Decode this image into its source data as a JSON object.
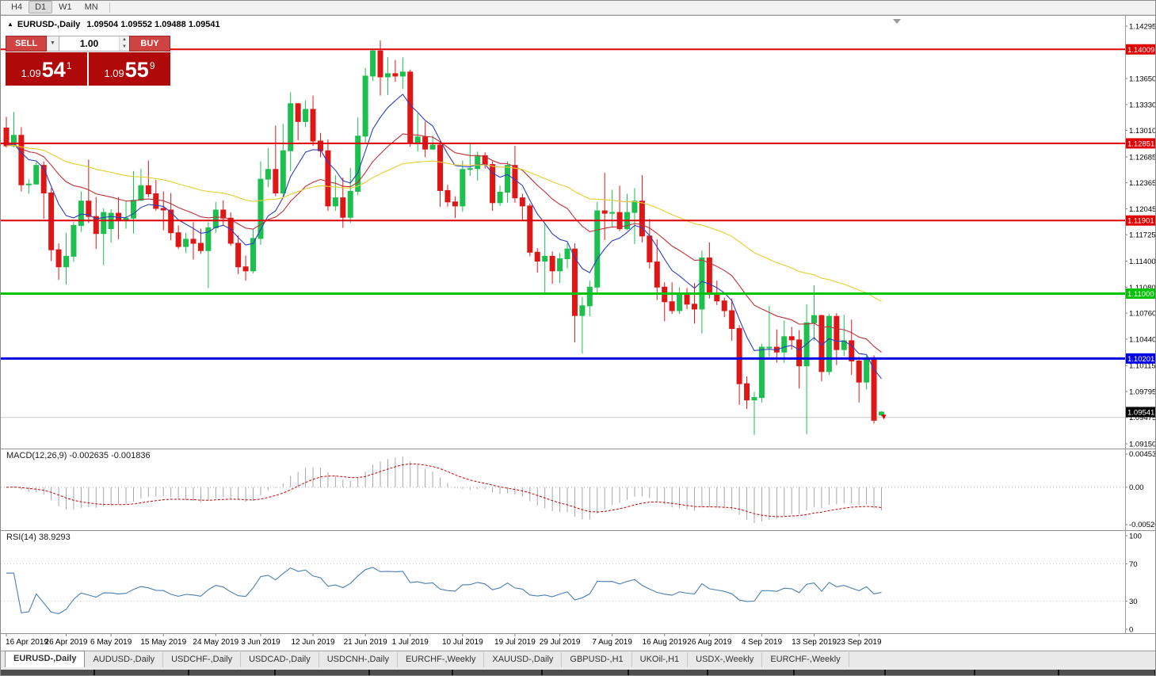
{
  "window": {
    "timeframe_buttons": [
      "H4",
      "D1",
      "W1",
      "MN"
    ],
    "active_timeframe": "D1"
  },
  "chart_header": {
    "collapse_icon": "▲",
    "symbol_period": "EURUSD-,Daily",
    "ohlc_text": "1.09504 1.09552 1.09488 1.09541"
  },
  "one_click": {
    "sell_label": "SELL",
    "buy_label": "BUY",
    "volume": "1.00",
    "sell_price": {
      "prefix": "1.09",
      "big": "54",
      "sup": "1"
    },
    "buy_price": {
      "prefix": "1.09",
      "big": "55",
      "sup": "9"
    }
  },
  "indicators": {
    "macd_label": "MACD(12,26,9) -0.002635 -0.001836",
    "rsi_label": "RSI(14) 38.9293"
  },
  "tabs": [
    {
      "label": "EURUSD-,Daily",
      "active": true
    },
    {
      "label": "AUDUSD-,Daily",
      "active": false
    },
    {
      "label": "USDCHF-,Daily",
      "active": false
    },
    {
      "label": "USDCAD-,Daily",
      "active": false
    },
    {
      "label": "USDCNH-,Daily",
      "active": false
    },
    {
      "label": "EURCHF-,Weekly",
      "active": false
    },
    {
      "label": "XAUUSD-,Daily",
      "active": false
    },
    {
      "label": "GBPUSD-,H1",
      "active": false
    },
    {
      "label": "UKOil-,H1",
      "active": false
    },
    {
      "label": "USDX-,Weekly",
      "active": false
    },
    {
      "label": "EURCHF-,Weekly",
      "active": false
    }
  ],
  "chart_data": {
    "type": "candlestick",
    "symbol": "EURUSD-",
    "period": "Daily",
    "title": "EURUSD-,Daily",
    "current": {
      "open": 1.09504,
      "high": 1.09552,
      "low": 1.09488,
      "close": 1.09541,
      "bid": "1.09541",
      "ask": "1.09559"
    },
    "up_color": "#1dbf4f",
    "down_color": "#df1616",
    "price_axis_ticks": [
      "1.14295",
      "1.13650",
      "1.13330",
      "1.13010",
      "1.12685",
      "1.12365",
      "1.12045",
      "1.11725",
      "1.11400",
      "1.11080",
      "1.10760",
      "1.10440",
      "1.10115",
      "1.09795",
      "1.09475",
      "1.09150"
    ],
    "levels": [
      {
        "price": 1.14009,
        "color": "#e00000",
        "width": 2,
        "badge": true
      },
      {
        "price": 1.12851,
        "color": "#e00000",
        "width": 2,
        "badge": true
      },
      {
        "price": 1.11901,
        "color": "#e00000",
        "width": 2,
        "badge": true
      },
      {
        "price": 1.11,
        "color": "#00c400",
        "width": 3,
        "badge": true
      },
      {
        "price": 1.10201,
        "color": "#0000e8",
        "width": 3,
        "badge": true
      },
      {
        "price": 1.09475,
        "color": "#c9c9c9",
        "width": 1,
        "badge": false
      }
    ],
    "current_price_badge": {
      "price": 1.09541,
      "color": "#000000"
    },
    "last_price_marker": {
      "price": 1.0948,
      "color": "#dd0000"
    },
    "moving_averages": [
      {
        "period": 8,
        "color": "#2c3ec0"
      },
      {
        "period": 21,
        "color": "#c03038"
      },
      {
        "period": 55,
        "color": "#e6cf30"
      }
    ],
    "macd": {
      "params": "12,26,9",
      "value_main": -0.002635,
      "value_signal": -0.001836,
      "axis_max": 0.004536,
      "axis_min": -0.0052,
      "axis_labels": [
        "0.004536",
        "0.00",
        "-0.00520"
      ],
      "histogram_color": "#a6a6a6",
      "signal_color": "#cc0000"
    },
    "rsi": {
      "period": 14,
      "value": 38.9293,
      "axis_labels": [
        "100",
        "70",
        "30",
        "0"
      ],
      "levels": [
        70,
        30
      ],
      "color": "#4a7fb5"
    },
    "x_ticks": [
      {
        "label": "16 Apr 2019",
        "index": 0
      },
      {
        "label": "26 Apr 2019",
        "index": 8
      },
      {
        "label": "6 May 2019",
        "index": 14
      },
      {
        "label": "15 May 2019",
        "index": 21
      },
      {
        "label": "24 May 2019",
        "index": 28
      },
      {
        "label": "3 Jun 2019",
        "index": 34
      },
      {
        "label": "12 Jun 2019",
        "index": 41
      },
      {
        "label": "21 Jun 2019",
        "index": 48
      },
      {
        "label": "1 Jul 2019",
        "index": 54
      },
      {
        "label": "10 Jul 2019",
        "index": 61
      },
      {
        "label": "19 Jul 2019",
        "index": 68
      },
      {
        "label": "29 Jul 2019",
        "index": 74
      },
      {
        "label": "7 Aug 2019",
        "index": 81
      },
      {
        "label": "16 Aug 2019",
        "index": 88
      },
      {
        "label": "26 Aug 2019",
        "index": 94
      },
      {
        "label": "4 Sep 2019",
        "index": 101
      },
      {
        "label": "13 Sep 2019",
        "index": 108
      },
      {
        "label": "23 Sep 2019",
        "index": 114
      }
    ],
    "candles": [
      [
        1.1304,
        1.1318,
        1.128,
        1.1282
      ],
      [
        1.1282,
        1.1324,
        1.128,
        1.1295
      ],
      [
        1.1295,
        1.1305,
        1.1226,
        1.1234
      ],
      [
        1.1234,
        1.1241,
        1.1223,
        1.1235
      ],
      [
        1.1235,
        1.1262,
        1.1234,
        1.1258
      ],
      [
        1.1258,
        1.1263,
        1.1192,
        1.1224
      ],
      [
        1.1224,
        1.123,
        1.114,
        1.1154
      ],
      [
        1.1154,
        1.1162,
        1.1117,
        1.1133
      ],
      [
        1.1133,
        1.1175,
        1.1111,
        1.1146
      ],
      [
        1.1146,
        1.1188,
        1.1139,
        1.1184
      ],
      [
        1.1184,
        1.1226,
        1.1176,
        1.1214
      ],
      [
        1.1214,
        1.1265,
        1.1187,
        1.1195
      ],
      [
        1.1195,
        1.1219,
        1.1155,
        1.1174
      ],
      [
        1.1174,
        1.1205,
        1.1135,
        1.12
      ],
      [
        1.118,
        1.1204,
        1.1163,
        1.1199
      ],
      [
        1.1199,
        1.1219,
        1.1167,
        1.119
      ],
      [
        1.119,
        1.1214,
        1.118,
        1.1193
      ],
      [
        1.1193,
        1.1251,
        1.1174,
        1.1215
      ],
      [
        1.1215,
        1.1254,
        1.1214,
        1.1233
      ],
      [
        1.1233,
        1.1264,
        1.1219,
        1.1223
      ],
      [
        1.1223,
        1.124,
        1.1202,
        1.1205
      ],
      [
        1.1205,
        1.1226,
        1.1178,
        1.1203
      ],
      [
        1.1203,
        1.1224,
        1.1166,
        1.1175
      ],
      [
        1.1175,
        1.1184,
        1.1155,
        1.1158
      ],
      [
        1.1158,
        1.1175,
        1.115,
        1.1167
      ],
      [
        1.1167,
        1.1188,
        1.1142,
        1.1162
      ],
      [
        1.1162,
        1.118,
        1.1149,
        1.1153
      ],
      [
        1.1153,
        1.1188,
        1.1107,
        1.1181
      ],
      [
        1.1181,
        1.1213,
        1.1175,
        1.1203
      ],
      [
        1.1203,
        1.1215,
        1.1184,
        1.1193
      ],
      [
        1.1193,
        1.12,
        1.1159,
        1.1162
      ],
      [
        1.1162,
        1.1172,
        1.1124,
        1.1133
      ],
      [
        1.1133,
        1.1147,
        1.1116,
        1.1128
      ],
      [
        1.1128,
        1.118,
        1.1125,
        1.1168
      ],
      [
        1.1168,
        1.1263,
        1.116,
        1.1241
      ],
      [
        1.1241,
        1.1279,
        1.1231,
        1.1253
      ],
      [
        1.1253,
        1.1307,
        1.122,
        1.1224
      ],
      [
        1.1224,
        1.1309,
        1.1219,
        1.1276
      ],
      [
        1.1276,
        1.1348,
        1.1251,
        1.1334
      ],
      [
        1.1334,
        1.1335,
        1.1289,
        1.1312
      ],
      [
        1.1312,
        1.1338,
        1.1305,
        1.1327
      ],
      [
        1.1327,
        1.1344,
        1.1282,
        1.1288
      ],
      [
        1.1288,
        1.1298,
        1.1268,
        1.1276
      ],
      [
        1.1276,
        1.129,
        1.1202,
        1.1208
      ],
      [
        1.1208,
        1.1246,
        1.1202,
        1.1218
      ],
      [
        1.1218,
        1.1243,
        1.1181,
        1.1194
      ],
      [
        1.1194,
        1.1255,
        1.1187,
        1.1226
      ],
      [
        1.1226,
        1.1317,
        1.1221,
        1.1294
      ],
      [
        1.1294,
        1.1378,
        1.1285,
        1.1368
      ],
      [
        1.1368,
        1.1402,
        1.1362,
        1.1399
      ],
      [
        1.1399,
        1.1412,
        1.1344,
        1.1367
      ],
      [
        1.1367,
        1.1391,
        1.1345,
        1.1371
      ],
      [
        1.1371,
        1.1388,
        1.1361,
        1.1368
      ],
      [
        1.1368,
        1.1391,
        1.1352,
        1.1373
      ],
      [
        1.1373,
        1.1376,
        1.1281,
        1.1285
      ],
      [
        1.1285,
        1.1322,
        1.1275,
        1.1293
      ],
      [
        1.1293,
        1.1312,
        1.1268,
        1.1278
      ],
      [
        1.1278,
        1.1295,
        1.1277,
        1.1283
      ],
      [
        1.1283,
        1.1288,
        1.1207,
        1.1227
      ],
      [
        1.1227,
        1.1234,
        1.1207,
        1.1213
      ],
      [
        1.1213,
        1.122,
        1.1193,
        1.1208
      ],
      [
        1.1208,
        1.1264,
        1.1201,
        1.1253
      ],
      [
        1.1253,
        1.1286,
        1.1245,
        1.1254
      ],
      [
        1.1254,
        1.1275,
        1.1239,
        1.127
      ],
      [
        1.127,
        1.1274,
        1.1254,
        1.1259
      ],
      [
        1.1259,
        1.1263,
        1.1202,
        1.1212
      ],
      [
        1.1212,
        1.1233,
        1.1208,
        1.1225
      ],
      [
        1.1225,
        1.1263,
        1.1212,
        1.1258
      ],
      [
        1.1258,
        1.1282,
        1.1212,
        1.1218
      ],
      [
        1.1218,
        1.1223,
        1.119,
        1.1208
      ],
      [
        1.1208,
        1.1211,
        1.1146,
        1.1151
      ],
      [
        1.1151,
        1.1156,
        1.1126,
        1.114
      ],
      [
        1.114,
        1.1187,
        1.1101,
        1.1146
      ],
      [
        1.1146,
        1.1152,
        1.1112,
        1.1128
      ],
      [
        1.1128,
        1.115,
        1.1113,
        1.1143
      ],
      [
        1.1143,
        1.1162,
        1.1131,
        1.1155
      ],
      [
        1.1155,
        1.1162,
        1.104,
        1.1073
      ],
      [
        1.1073,
        1.1096,
        1.1026,
        1.1085
      ],
      [
        1.1085,
        1.1116,
        1.1072,
        1.1108
      ],
      [
        1.1108,
        1.1213,
        1.1101,
        1.1202
      ],
      [
        1.1202,
        1.1249,
        1.1166,
        1.1199
      ],
      [
        1.1199,
        1.1228,
        1.1183,
        1.12
      ],
      [
        1.12,
        1.1233,
        1.1177,
        1.118
      ],
      [
        1.118,
        1.1223,
        1.1178,
        1.12
      ],
      [
        1.12,
        1.123,
        1.1161,
        1.1214
      ],
      [
        1.1214,
        1.1246,
        1.1163,
        1.1171
      ],
      [
        1.1171,
        1.1192,
        1.1131,
        1.1139
      ],
      [
        1.1139,
        1.1167,
        1.1092,
        1.1108
      ],
      [
        1.1108,
        1.1114,
        1.1066,
        1.109
      ],
      [
        1.109,
        1.1114,
        1.1075,
        1.1079
      ],
      [
        1.1079,
        1.1108,
        1.1075,
        1.1099
      ],
      [
        1.1099,
        1.1107,
        1.1081,
        1.1087
      ],
      [
        1.1087,
        1.1113,
        1.1063,
        1.1081
      ],
      [
        1.1081,
        1.1153,
        1.1051,
        1.1144
      ],
      [
        1.1144,
        1.1163,
        1.1094,
        1.1101
      ],
      [
        1.1101,
        1.1116,
        1.1086,
        1.1091
      ],
      [
        1.1091,
        1.1095,
        1.1071,
        1.1079
      ],
      [
        1.1079,
        1.1094,
        1.1042,
        1.1057
      ],
      [
        1.1057,
        1.1061,
        1.0963,
        1.0989
      ],
      [
        1.0989,
        1.0998,
        1.0958,
        1.0969
      ],
      [
        1.0969,
        1.0979,
        1.0926,
        1.0972
      ],
      [
        1.0972,
        1.1038,
        1.0966,
        1.1034
      ],
      [
        1.1034,
        1.1085,
        1.1022,
        1.1034
      ],
      [
        1.1034,
        1.1056,
        1.1015,
        1.1028
      ],
      [
        1.1028,
        1.1067,
        1.1015,
        1.1047
      ],
      [
        1.1047,
        1.1059,
        1.1031,
        1.1043
      ],
      [
        1.1043,
        1.1055,
        1.0983,
        1.1011
      ],
      [
        1.1011,
        1.1087,
        1.0927,
        1.1064
      ],
      [
        1.1064,
        1.111,
        1.1042,
        1.1073
      ],
      [
        1.1073,
        1.1074,
        1.0992,
        1.1004
      ],
      [
        1.1004,
        1.1075,
        1.1,
        1.1072
      ],
      [
        1.1072,
        1.1076,
        1.1012,
        1.1031
      ],
      [
        1.1031,
        1.1074,
        1.1023,
        1.1042
      ],
      [
        1.1042,
        1.1068,
        1.1,
        1.1017
      ],
      [
        1.1017,
        1.1022,
        1.0966,
        1.0991
      ],
      [
        1.0991,
        1.1024,
        1.0982,
        1.1021
      ],
      [
        1.1021,
        1.1024,
        1.094,
        1.0944
      ],
      [
        1.09504,
        1.09552,
        1.09488,
        1.09541
      ]
    ]
  }
}
